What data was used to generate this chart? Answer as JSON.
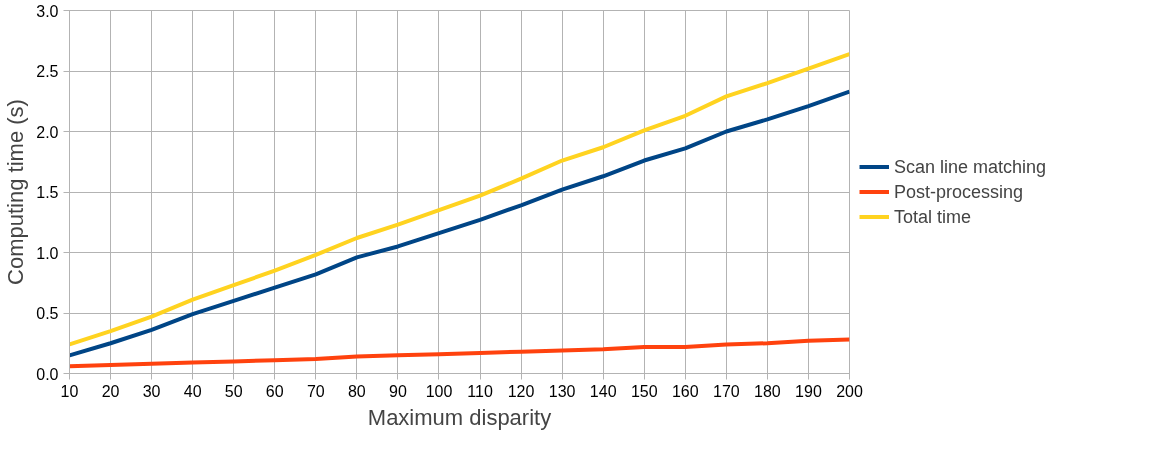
{
  "chart_data": {
    "type": "line",
    "xlabel": "Maximum disparity",
    "ylabel": "Computing time (s)",
    "x": [
      10,
      20,
      30,
      40,
      50,
      60,
      70,
      80,
      90,
      100,
      110,
      120,
      130,
      140,
      150,
      160,
      170,
      180,
      190,
      200
    ],
    "series": [
      {
        "name": "Scan line matching",
        "color": "#004586",
        "values": [
          0.15,
          0.25,
          0.36,
          0.49,
          0.6,
          0.71,
          0.82,
          0.96,
          1.05,
          1.16,
          1.27,
          1.39,
          1.52,
          1.63,
          1.76,
          1.86,
          2.0,
          2.1,
          2.21,
          2.33
        ]
      },
      {
        "name": "Post-processing",
        "color": "#ff420e",
        "values": [
          0.06,
          0.07,
          0.08,
          0.09,
          0.1,
          0.11,
          0.12,
          0.14,
          0.15,
          0.16,
          0.17,
          0.18,
          0.19,
          0.2,
          0.22,
          0.22,
          0.24,
          0.25,
          0.27,
          0.28
        ]
      },
      {
        "name": "Total time",
        "color": "#ffd320",
        "values": [
          0.24,
          0.35,
          0.47,
          0.61,
          0.73,
          0.85,
          0.98,
          1.12,
          1.23,
          1.35,
          1.47,
          1.61,
          1.76,
          1.87,
          2.01,
          2.13,
          2.29,
          2.4,
          2.52,
          2.64
        ]
      }
    ],
    "xlim": [
      10,
      200
    ],
    "xticks": [
      10,
      20,
      30,
      40,
      50,
      60,
      70,
      80,
      90,
      100,
      110,
      120,
      130,
      140,
      150,
      160,
      170,
      180,
      190,
      200
    ],
    "ylim": [
      0,
      3
    ],
    "yticks": [
      {
        "value": 0,
        "label": "0.0"
      },
      0.5,
      {
        "value": 1,
        "label": "1.0"
      },
      1.5,
      {
        "value": 2,
        "label": "2.0"
      },
      2.5,
      {
        "value": 3,
        "label": "3.0"
      }
    ],
    "grid": true,
    "legend": "right",
    "marker": "none",
    "line_style": "solid"
  }
}
